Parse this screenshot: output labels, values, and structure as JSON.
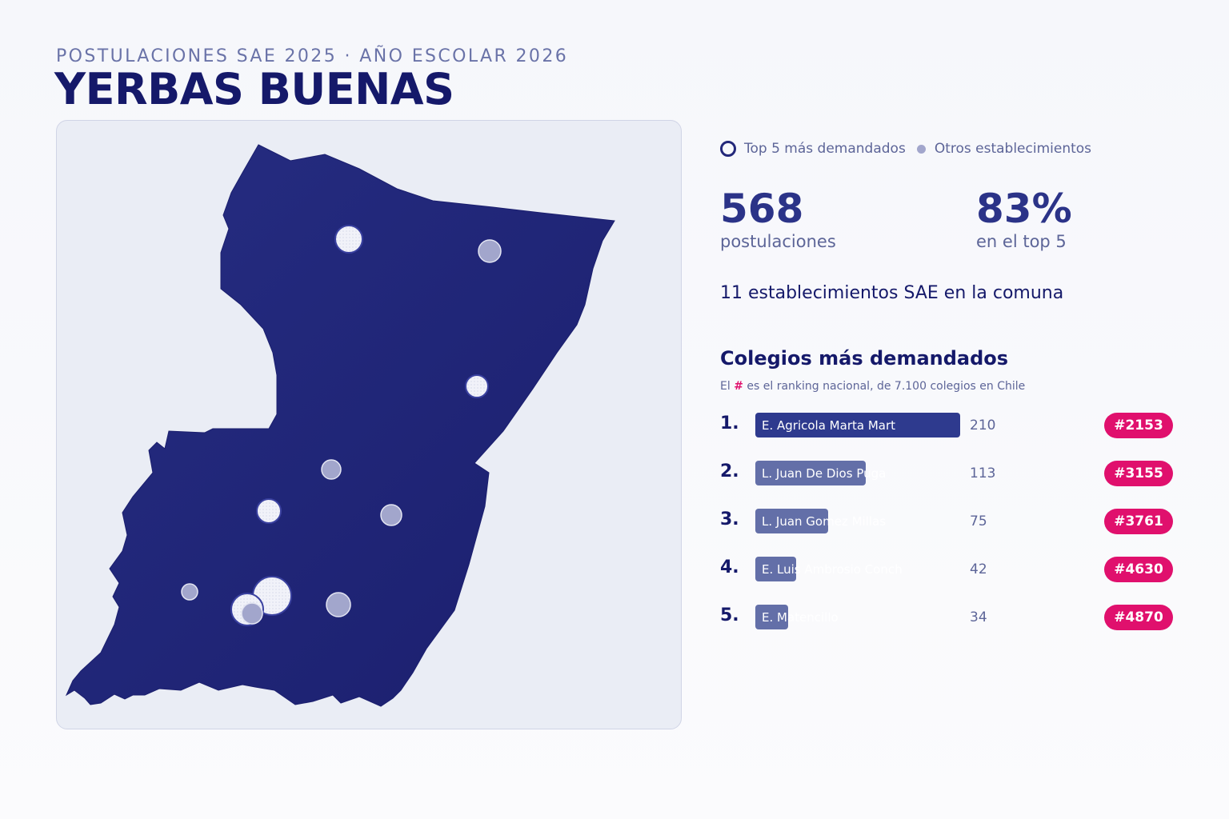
{
  "header": {
    "kicker": "POSTULACIONES SAE 2025 · AÑO ESCOLAR 2026",
    "title": "YERBAS BUENAS"
  },
  "colors": {
    "region_fill": "#23287a",
    "accent": "#e0106d",
    "bar_top": "#2e3a8e",
    "bar_other": "#636fa8",
    "dot_other": "#a2a6cc"
  },
  "legend": {
    "top5": "Top 5 más demandados",
    "others": "Otros establecimientos"
  },
  "stats": {
    "applications_value": "568",
    "applications_label": "postulaciones",
    "top5_share_value": "83%",
    "top5_share_label": "en el top 5",
    "schools_line": "11 establecimientos SAE en la comuna"
  },
  "ranking": {
    "title": "Colegios más demandados",
    "subtitle_prefix": "El",
    "subtitle_hash": "#",
    "subtitle_suffix": "es el ranking nacional, de 7.100 colegios en Chile",
    "max_value": 210,
    "items": [
      {
        "pos": "1.",
        "name": "E. Agricola Marta Mart",
        "value": 210,
        "value_label": "210",
        "national_rank": "#2153"
      },
      {
        "pos": "2.",
        "name": "L. Juan De Dios Puga",
        "value": 113,
        "value_label": "113",
        "national_rank": "#3155"
      },
      {
        "pos": "3.",
        "name": "L. Juan Gomez Millas",
        "value": 75,
        "value_label": "75",
        "national_rank": "#3761"
      },
      {
        "pos": "4.",
        "name": "E. Luis Ambrosio Conch",
        "value": 42,
        "value_label": "42",
        "national_rank": "#4630"
      },
      {
        "pos": "5.",
        "name": "E. Matencillo",
        "value": 34,
        "value_label": "34",
        "national_rank": "#4870"
      }
    ]
  },
  "map": {
    "schools": [
      {
        "top5": true
      },
      {
        "top5": false
      },
      {
        "top5": true
      },
      {
        "top5": false
      },
      {
        "top5": true
      },
      {
        "top5": false
      },
      {
        "top5": false
      },
      {
        "top5": true
      },
      {
        "top5": true
      },
      {
        "top5": false
      },
      {
        "top5": false
      }
    ]
  }
}
